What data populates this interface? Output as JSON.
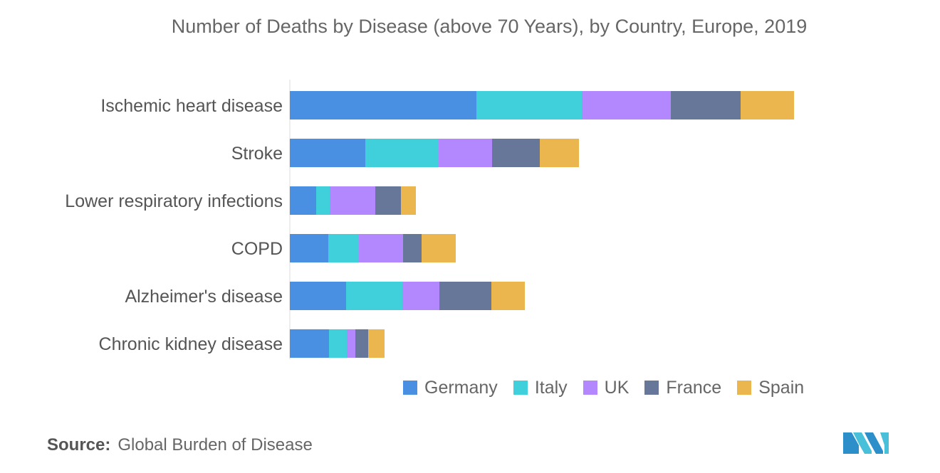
{
  "chart_data": {
    "type": "bar",
    "orientation": "horizontal",
    "stacked": true,
    "title": "Number of Deaths by Disease (above 70 Years), by Country, Europe, 2019",
    "categories": [
      "Ischemic heart disease",
      "Stroke",
      "Lower respiratory infections",
      "COPD",
      "Alzheimer's disease",
      "Chronic kidney disease"
    ],
    "series": [
      {
        "name": "Germany",
        "color": "#4a90e2",
        "values": [
          262,
          106,
          37,
          54,
          79,
          55
        ]
      },
      {
        "name": "Italy",
        "color": "#3fd0db",
        "values": [
          148,
          103,
          19,
          43,
          79,
          25
        ]
      },
      {
        "name": "UK",
        "color": "#b388ff",
        "values": [
          125,
          75,
          64,
          62,
          52,
          12
        ]
      },
      {
        "name": "France",
        "color": "#667799",
        "values": [
          98,
          67,
          36,
          26,
          73,
          18
        ]
      },
      {
        "name": "Spain",
        "color": "#ecb64e",
        "values": [
          75,
          55,
          21,
          48,
          47,
          23
        ]
      }
    ],
    "xlim": [
      0,
      720
    ],
    "grid": false,
    "legend_position": "bottom"
  },
  "source": {
    "label": "Source:",
    "text": "Global Burden of Disease"
  },
  "logo": {
    "icon": "mordor-intelligence-logo"
  }
}
